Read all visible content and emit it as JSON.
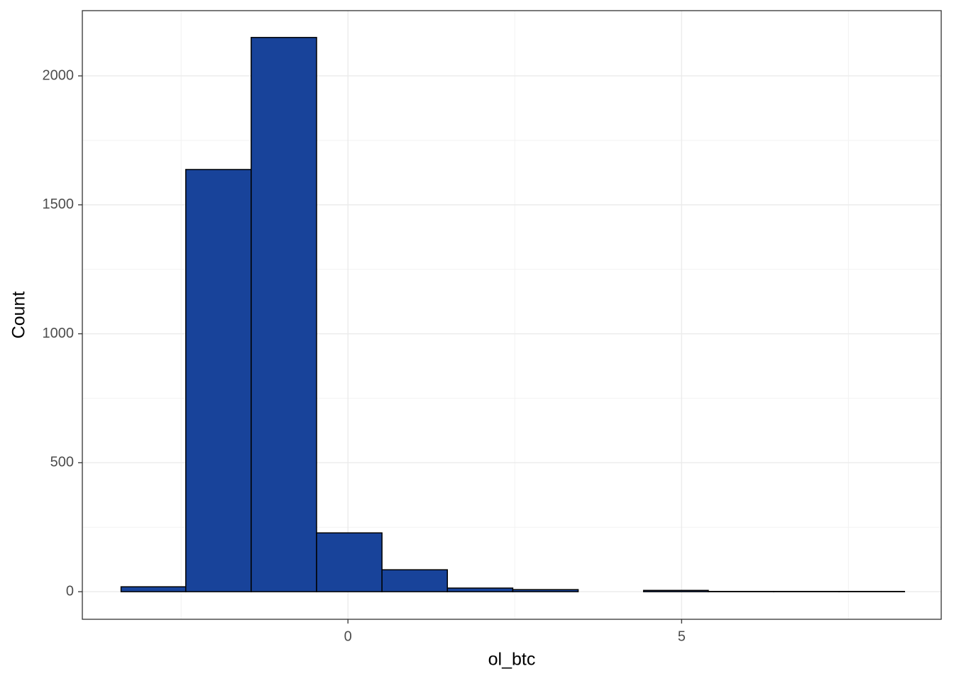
{
  "chart_data": {
    "type": "histogram",
    "x_label": "ol_btc",
    "y_label": "Count",
    "bins": [
      -3.4,
      -2.43,
      -1.45,
      -0.47,
      0.51,
      1.49,
      2.47,
      3.45,
      4.43,
      5.4,
      6.38,
      7.36,
      8.34
    ],
    "values": [
      19,
      1637,
      2149,
      228,
      85,
      14,
      8,
      0,
      5,
      1,
      1,
      1
    ],
    "color": "#18439a",
    "edge_color": "#000000",
    "xlim": [
      -3.98,
      8.89
    ],
    "ylim": [
      -107,
      2253
    ],
    "xticks": [
      0,
      5
    ],
    "yticks": [
      0,
      500,
      1000,
      1500,
      2000
    ],
    "x_minor_ticks": [
      -2.5,
      2.5,
      7.5
    ],
    "y_minor_ticks": [
      250,
      750,
      1250,
      1750
    ],
    "grid": true
  }
}
